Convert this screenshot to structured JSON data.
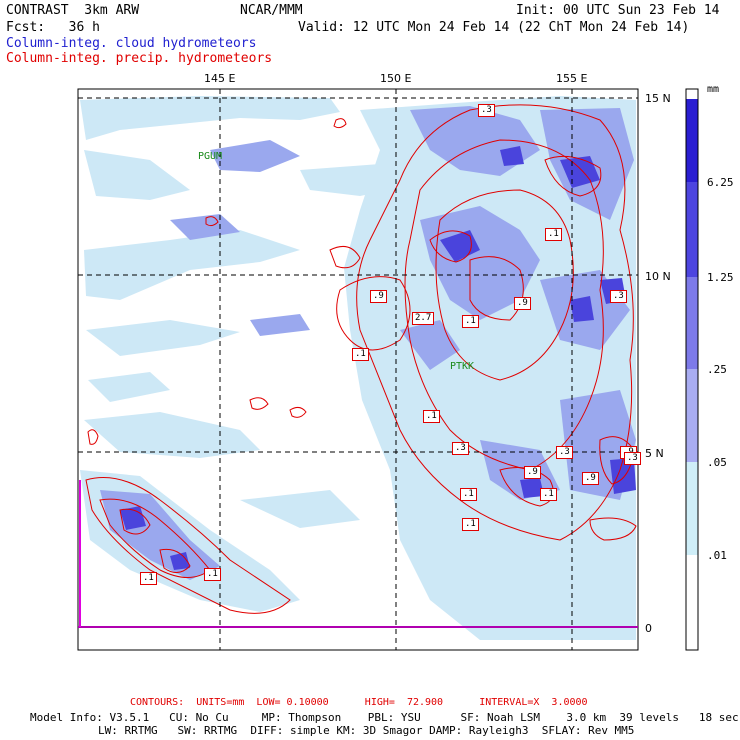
{
  "header": {
    "title": "CONTRAST  3km ARW",
    "org": "NCAR/MMM",
    "init": "Init: 00 UTC Sun 23 Feb 14",
    "fcst": "Fcst:   36 h",
    "valid": "Valid: 12 UTC Mon 24 Feb 14 (22 ChT Mon 24 Feb 14)",
    "field_cloud": "Column-integ. cloud hydrometeors",
    "field_precip": "Column-integ. precip. hydrometeors"
  },
  "map": {
    "lon_labels": [
      "145 E",
      "150 E",
      "155 E"
    ],
    "lat_labels": [
      "15 N",
      "10 N",
      "5 N",
      "0"
    ],
    "stations": [
      "PGUM",
      "PTKK"
    ],
    "contour_labels": [
      ".3",
      ".1",
      ".1",
      ".9",
      "2.7",
      ".1",
      ".1",
      ".3",
      ".9",
      ".3",
      ".1",
      ".1",
      ".9",
      ".9",
      ".1",
      ".1",
      ".1",
      ".3",
      ".9",
      ".3"
    ]
  },
  "colorbar": {
    "unit": "mm",
    "labels": [
      "6.25",
      "1.25",
      ".25",
      ".05",
      ".01"
    ],
    "colors": [
      "#2a1ed2",
      "#4d45e0",
      "#7d7ae9",
      "#a9adf2",
      "#cfeef8",
      "#e8f8fc",
      "#ffffff"
    ]
  },
  "footer": {
    "contours": "CONTOURS:  UNITS=mm  LOW= 0.10000      HIGH=  72.900      INTERVAL=X  3.0000",
    "model1": "Model Info: V3.5.1   CU: No Cu     MP: Thompson    PBL: YSU      SF: Noah LSM    3.0 km  39 levels   18 sec",
    "model2": "LW: RRTMG   SW: RRTMG  DIFF: simple KM: 3D Smagor DAMP: Rayleigh3  SFLAY: Rev MM5"
  },
  "colors": {
    "cloud_light": "#cde8f6",
    "cloud_mid": "#9aa8ee",
    "cloud_dark": "#4a44dc",
    "precip": "#e00000",
    "station": "#1a8a1a"
  }
}
